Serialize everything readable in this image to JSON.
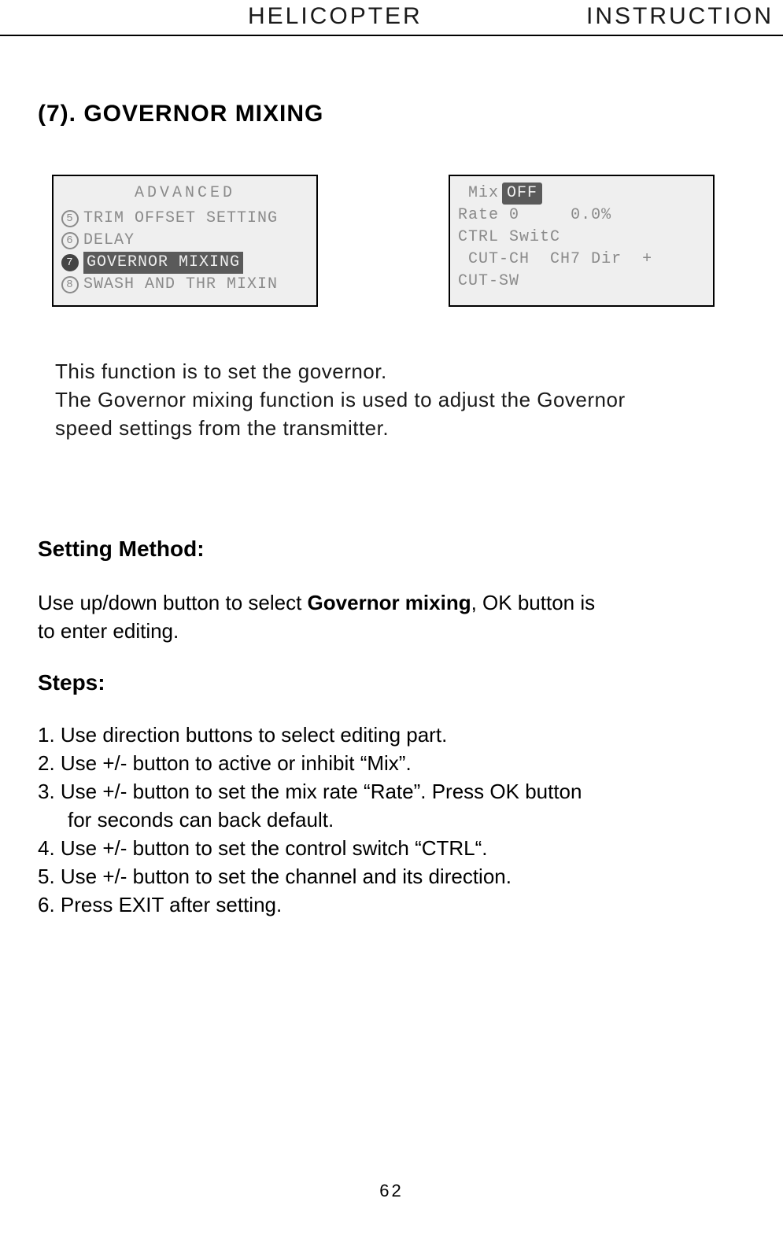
{
  "header": {
    "left": "HELICOPTER",
    "right": "INSTRUCTION"
  },
  "section": {
    "title": "(7). GOVERNOR MIXING"
  },
  "lcd_left": {
    "title": "ADVANCED",
    "rows": [
      {
        "num": "5",
        "label": "TRIM OFFSET SETTING",
        "selected": false
      },
      {
        "num": "6",
        "label": "DELAY",
        "selected": false
      },
      {
        "num": "7",
        "label": "GOVERNOR MIXING",
        "selected": true
      },
      {
        "num": "8",
        "label": "SWASH AND THR MIXIN",
        "selected": false
      }
    ]
  },
  "lcd_right": {
    "lines": {
      "mix_label": "Mix",
      "mix_value": "OFF",
      "rate_label": "Rate",
      "rate_idx": "0",
      "rate_val": "0.0%",
      "ctrl_label": "CTRL",
      "ctrl_val": "SwitC",
      "cutch_label": "CUT-CH",
      "cutch_val": "CH7",
      "dir_label": "Dir",
      "dir_val": "+",
      "cutsw_label": "CUT-SW"
    }
  },
  "intro": {
    "l1": "This function is to set the governor.",
    "l2": "The Governor mixing function is used to adjust the Governor",
    "l3": "speed settings from the transmitter."
  },
  "setting_method": {
    "heading": "Setting Method:",
    "line_a": "Use up/down button to select ",
    "line_bold": "Governor mixing",
    "line_b": ", OK button is",
    "line_c": "to enter editing."
  },
  "steps": {
    "heading": "Steps:",
    "items": [
      "1. Use direction buttons to select editing part.",
      "2. Use +/- button to active or inhibit “Mix”.",
      "3. Use +/- button to set the mix rate “Rate”. Press OK button",
      "    for seconds can back default.",
      "4. Use +/- button to set the control switch “CTRL“.",
      "5. Use +/- button to set the channel and its direction.",
      "6. Press EXIT after setting."
    ]
  },
  "page_number": "62",
  "colors": {
    "text": "#000000",
    "lcd_bg": "#efefef",
    "lcd_fg": "#8a8a8a",
    "sel_bg": "#5a5a5a"
  }
}
